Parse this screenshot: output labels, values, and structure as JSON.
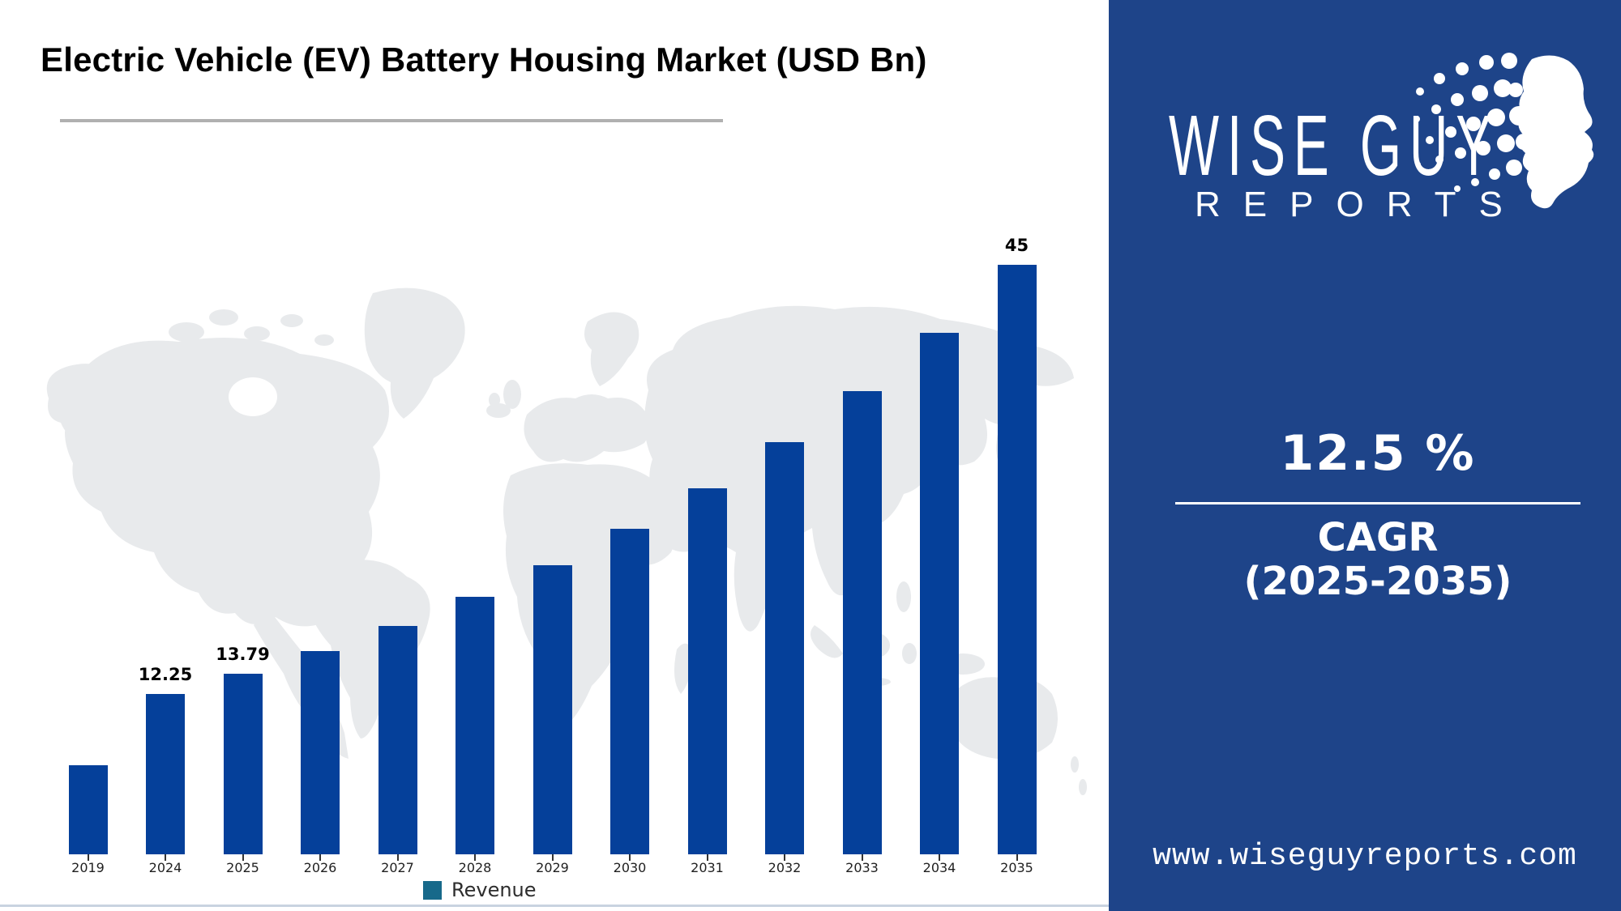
{
  "title": "Electric Vehicle (EV) Battery Housing Market (USD Bn)",
  "chart_data": {
    "type": "bar",
    "categories": [
      "2019",
      "2024",
      "2025",
      "2026",
      "2027",
      "2028",
      "2029",
      "2030",
      "2031",
      "2032",
      "2033",
      "2034",
      "2035"
    ],
    "values": [
      6.8,
      12.25,
      13.79,
      15.51,
      17.45,
      19.63,
      22.09,
      24.85,
      27.95,
      31.45,
      35.38,
      39.8,
      45
    ],
    "data_labels": [
      "",
      "12.25",
      "13.79",
      "",
      "",
      "",
      "",
      "",
      "",
      "",
      "",
      "",
      "45"
    ],
    "title": "Electric Vehicle (EV) Battery Housing Market (USD Bn)",
    "xlabel": "",
    "ylabel": "",
    "ylim": [
      0,
      48
    ],
    "grid": false,
    "legend": {
      "label": "Revenue",
      "position": "bottom-center",
      "marker_color": "#17698a"
    },
    "bar_color": "#05409a",
    "map_background_color": "#e8eaec"
  },
  "side_panel": {
    "brand_line1": "WISE GUY",
    "brand_line2": "REPORTS",
    "cagr_value": "12.5 %",
    "cagr_label_line1": "CAGR",
    "cagr_label_line2": "(2025-2035)",
    "website": "www.wiseguyreports.com",
    "bg_color": "#1e4489",
    "text_color": "#ffffff"
  }
}
